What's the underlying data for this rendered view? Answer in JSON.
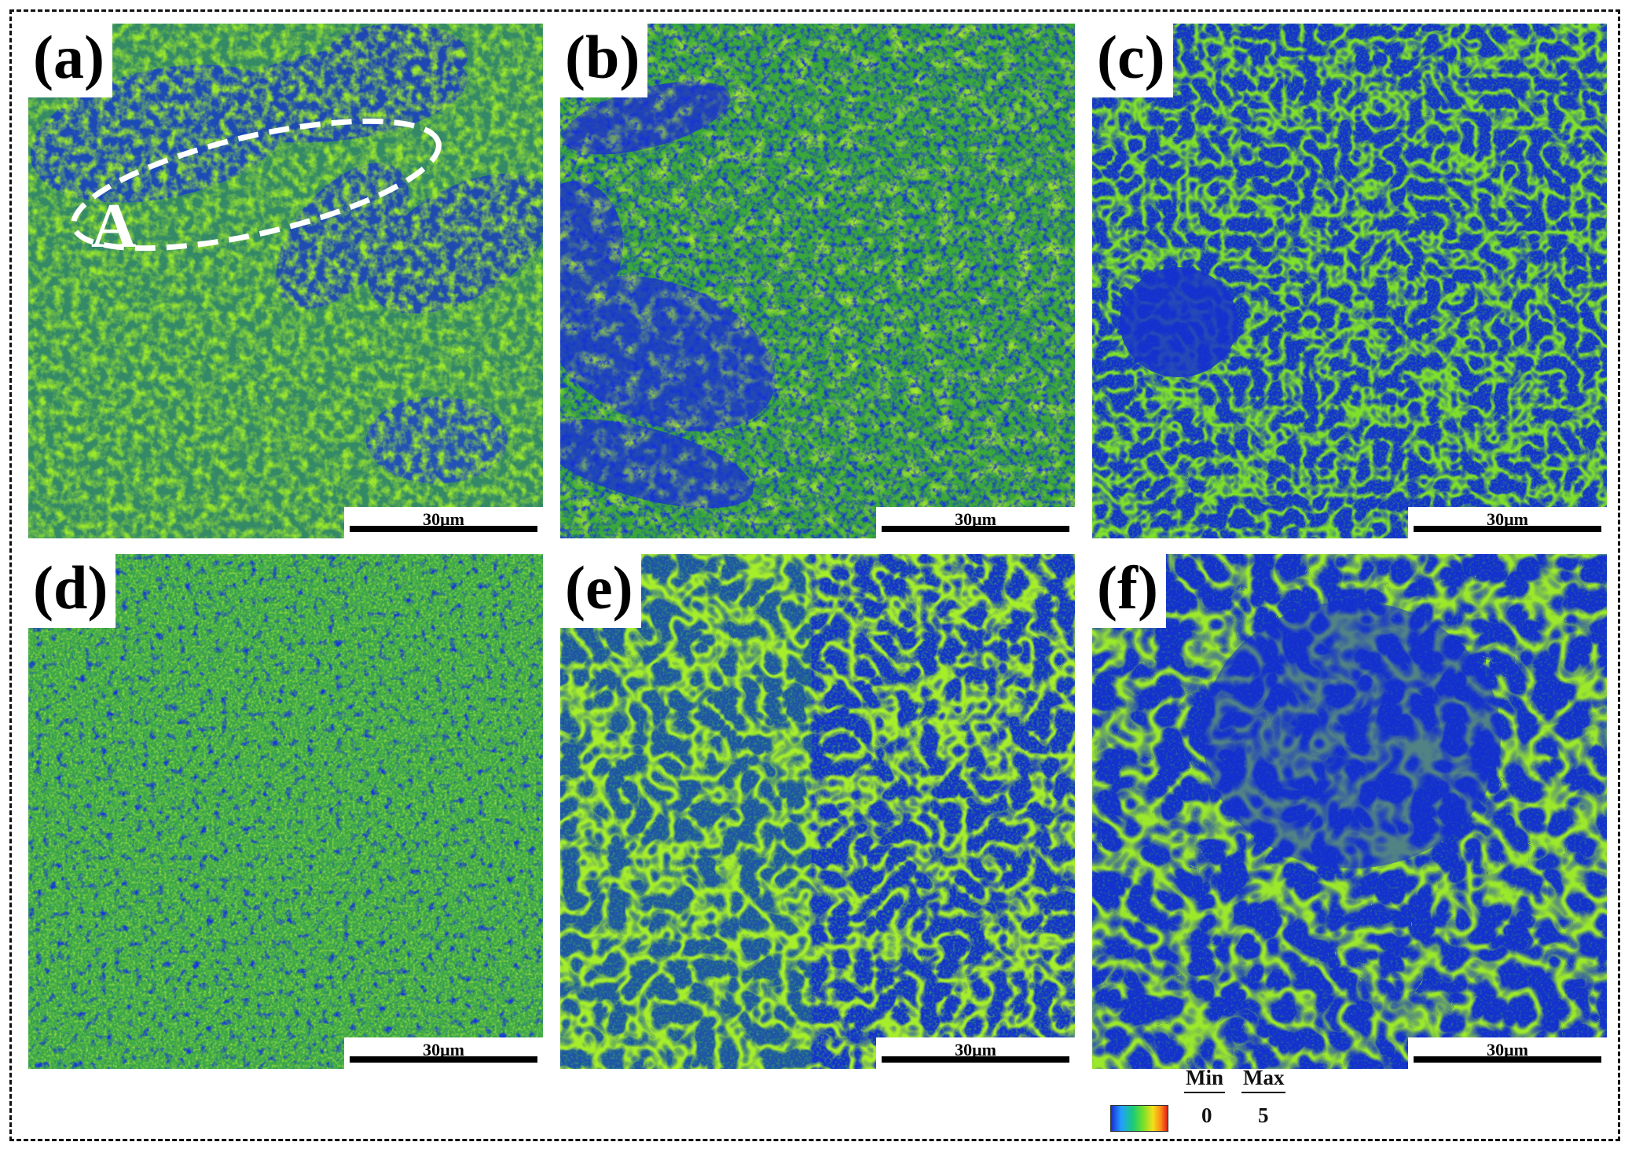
{
  "panels": [
    {
      "label": "(a)",
      "scale_bar": "30μm",
      "style": "mixed-coarse"
    },
    {
      "label": "(b)",
      "scale_bar": "30μm",
      "style": "mixed-fine"
    },
    {
      "label": "(c)",
      "scale_bar": "30μm",
      "style": "cells-blue"
    },
    {
      "label": "(d)",
      "scale_bar": "30μm",
      "style": "speckle-green"
    },
    {
      "label": "(e)",
      "scale_bar": "30μm",
      "style": "cells-network"
    },
    {
      "label": "(f)",
      "scale_bar": "30μm",
      "style": "cells-large"
    }
  ],
  "annotation": {
    "text": "A"
  },
  "legend": {
    "min_label": "Min",
    "max_label": "Max",
    "min_value": "0",
    "max_value": "5"
  },
  "colors": {
    "low": "#1a2ad8",
    "mid": "#3fbf2a",
    "high": "#e01a1a",
    "boundary": "#b9f02a"
  }
}
